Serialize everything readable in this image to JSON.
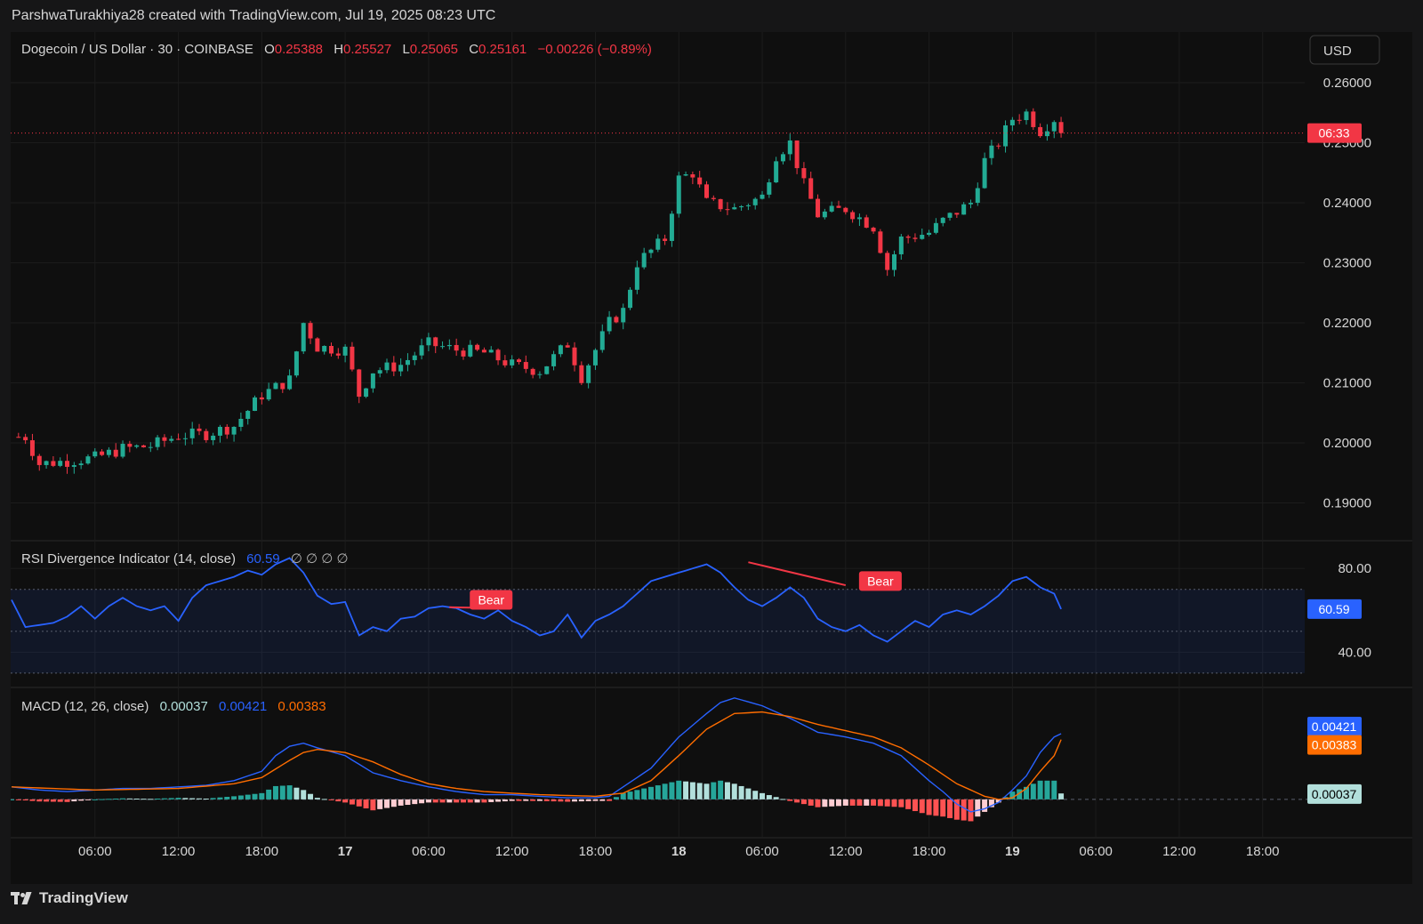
{
  "header": {
    "text": "ParshwaTurakhiya28 created with TradingView.com, Jul 19, 2025 08:23 UTC"
  },
  "footer": {
    "brand": "TradingView"
  },
  "colors": {
    "up": "#22ab94",
    "down": "#f23645",
    "rsi": "#2962ff",
    "macd": "#2962ff",
    "signal": "#ff6d00",
    "histUp": "#26a69a",
    "histUpLight": "#b2dfdb",
    "histDown": "#ff5252",
    "histDownLight": "#ffcdd2"
  },
  "legend": {
    "symbol": "Dogecoin / US Dollar · 30 · COINBASE",
    "o_label": "O",
    "o": "0.25388",
    "h_label": "H",
    "h": "0.25527",
    "l_label": "L",
    "l": "0.25065",
    "c_label": "C",
    "c": "0.25161",
    "change": "−0.00226 (−0.89%)"
  },
  "currency_button": "USD",
  "rsi_legend": {
    "name": "RSI Divergence Indicator (14, close)",
    "value": "60.59",
    "symbols": "∅ ∅ ∅ ∅"
  },
  "macd_legend": {
    "name": "MACD (12, 26, close)",
    "hist": "0.00037",
    "macd": "0.00421",
    "signal": "0.00383"
  },
  "chart_data": [
    {
      "type": "candlestick",
      "title": "Dogecoin / US Dollar · 30 · COINBASE",
      "ylim": [
        0.184,
        0.264
      ],
      "y_ticks": [
        "0.26000",
        "0.25000",
        "0.24000",
        "0.23000",
        "0.22000",
        "0.21000",
        "0.20000",
        "0.19000"
      ],
      "y_tick_values": [
        0.26,
        0.25,
        0.24,
        0.23,
        0.22,
        0.21,
        0.2,
        0.19
      ],
      "last_price": 0.25161,
      "countdown_label": "06:33",
      "x_axis": [
        "06:00",
        "12:00",
        "18:00",
        "17",
        "06:00",
        "12:00",
        "18:00",
        "18",
        "06:00",
        "12:00",
        "18:00",
        "19",
        "06:00",
        "12:00",
        "18:00"
      ],
      "x_axis_bold": [
        false,
        false,
        false,
        true,
        false,
        false,
        false,
        true,
        false,
        false,
        false,
        true,
        false,
        false,
        false
      ],
      "x_axis_hours": [
        30,
        36,
        42,
        48,
        54,
        60,
        66,
        72,
        78,
        84,
        90,
        96,
        102,
        108,
        114
      ],
      "close_series_hourly_anchors": [
        [
          25,
          0.201
        ],
        [
          26,
          0.1965
        ],
        [
          28,
          0.197
        ],
        [
          30,
          0.1975
        ],
        [
          32,
          0.199
        ],
        [
          34,
          0.1995
        ],
        [
          36,
          0.2012
        ],
        [
          38,
          0.2015
        ],
        [
          40,
          0.2028
        ],
        [
          42,
          0.208
        ],
        [
          44,
          0.2105
        ],
        [
          45,
          0.22
        ],
        [
          46,
          0.216
        ],
        [
          48,
          0.2155
        ],
        [
          49,
          0.208
        ],
        [
          50,
          0.212
        ],
        [
          52,
          0.213
        ],
        [
          54,
          0.2165
        ],
        [
          56,
          0.2155
        ],
        [
          58,
          0.215
        ],
        [
          60,
          0.213
        ],
        [
          62,
          0.212
        ],
        [
          64,
          0.2165
        ],
        [
          65,
          0.211
        ],
        [
          67,
          0.22
        ],
        [
          68,
          0.222
        ],
        [
          69,
          0.23
        ],
        [
          71,
          0.234
        ],
        [
          72,
          0.244
        ],
        [
          73,
          0.245
        ],
        [
          74,
          0.24
        ],
        [
          76,
          0.239
        ],
        [
          78,
          0.241
        ],
        [
          79,
          0.248
        ],
        [
          80,
          0.25
        ],
        [
          81,
          0.243
        ],
        [
          82,
          0.238
        ],
        [
          84,
          0.239
        ],
        [
          86,
          0.236
        ],
        [
          87,
          0.229
        ],
        [
          88,
          0.234
        ],
        [
          90,
          0.235
        ],
        [
          91,
          0.237
        ],
        [
          93,
          0.24
        ],
        [
          94,
          0.247
        ],
        [
          95,
          0.25
        ],
        [
          96,
          0.254
        ],
        [
          97,
          0.255
        ],
        [
          98,
          0.252
        ],
        [
          99,
          0.254
        ],
        [
          99.5,
          0.2516
        ]
      ]
    },
    {
      "type": "line",
      "title": "RSI Divergence Indicator (14, close)",
      "ylim": [
        24,
        92
      ],
      "y_ticks": [
        "80.00",
        "40.00"
      ],
      "y_tick_values": [
        80,
        40
      ],
      "band_upper": 70,
      "band_lower": 30,
      "midline": 50,
      "last_value": 60.59,
      "labels": [
        {
          "text": "Bear",
          "hour": 58.5,
          "value": 65
        },
        {
          "text": "Bear",
          "hour": 86.5,
          "value": 74
        }
      ],
      "divergence_lines": [
        {
          "from_hour": 55.5,
          "from": 61.5,
          "to_hour": 59.5,
          "to": 61
        },
        {
          "from_hour": 77,
          "from": 83,
          "to_hour": 84,
          "to": 72
        }
      ],
      "series_hourly_anchors": [
        [
          24,
          65
        ],
        [
          25,
          52
        ],
        [
          26,
          53
        ],
        [
          27,
          54
        ],
        [
          28,
          57
        ],
        [
          29,
          62
        ],
        [
          30,
          56
        ],
        [
          31,
          62
        ],
        [
          32,
          66
        ],
        [
          33,
          62
        ],
        [
          34,
          60
        ],
        [
          35,
          62
        ],
        [
          36,
          55
        ],
        [
          37,
          66
        ],
        [
          38,
          72
        ],
        [
          39,
          74
        ],
        [
          40,
          76
        ],
        [
          41,
          79
        ],
        [
          42,
          77
        ],
        [
          43,
          82
        ],
        [
          44,
          85
        ],
        [
          45,
          78
        ],
        [
          46,
          67
        ],
        [
          47,
          63
        ],
        [
          48,
          64
        ],
        [
          49,
          48
        ],
        [
          50,
          52
        ],
        [
          51,
          50
        ],
        [
          52,
          56
        ],
        [
          53,
          57
        ],
        [
          54,
          61
        ],
        [
          55,
          62
        ],
        [
          56,
          61
        ],
        [
          57,
          58
        ],
        [
          58,
          56
        ],
        [
          59,
          60
        ],
        [
          60,
          55
        ],
        [
          61,
          52
        ],
        [
          62,
          48
        ],
        [
          63,
          50
        ],
        [
          64,
          58
        ],
        [
          65,
          47
        ],
        [
          66,
          55
        ],
        [
          67,
          58
        ],
        [
          68,
          62
        ],
        [
          69,
          68
        ],
        [
          70,
          74
        ],
        [
          71,
          76
        ],
        [
          72,
          78
        ],
        [
          73,
          80
        ],
        [
          74,
          82
        ],
        [
          75,
          78
        ],
        [
          76,
          71
        ],
        [
          77,
          65
        ],
        [
          78,
          62
        ],
        [
          79,
          66
        ],
        [
          80,
          71
        ],
        [
          81,
          66
        ],
        [
          82,
          56
        ],
        [
          83,
          52
        ],
        [
          84,
          50
        ],
        [
          85,
          53
        ],
        [
          86,
          48
        ],
        [
          87,
          45
        ],
        [
          88,
          50
        ],
        [
          89,
          55
        ],
        [
          90,
          52
        ],
        [
          91,
          58
        ],
        [
          92,
          60
        ],
        [
          93,
          58
        ],
        [
          94,
          62
        ],
        [
          95,
          67
        ],
        [
          96,
          74
        ],
        [
          97,
          76
        ],
        [
          98,
          71
        ],
        [
          99,
          68
        ],
        [
          99.5,
          60.59
        ]
      ]
    },
    {
      "type": "line+bar",
      "title": "MACD (12, 26, close)",
      "ylim": [
        -0.0024,
        0.007
      ],
      "zero_line": 0,
      "last_values": {
        "macd": 0.00421,
        "signal": 0.00383,
        "hist": 0.00037
      },
      "macd_hourly_anchors": [
        [
          24,
          0.0008
        ],
        [
          26,
          0.0006
        ],
        [
          28,
          0.0005
        ],
        [
          30,
          0.0006
        ],
        [
          32,
          0.0007
        ],
        [
          34,
          0.0007
        ],
        [
          36,
          0.0008
        ],
        [
          38,
          0.0009
        ],
        [
          40,
          0.0012
        ],
        [
          42,
          0.0018
        ],
        [
          43,
          0.0028
        ],
        [
          44,
          0.0034
        ],
        [
          45,
          0.0036
        ],
        [
          46,
          0.0033
        ],
        [
          48,
          0.0028
        ],
        [
          50,
          0.0017
        ],
        [
          52,
          0.0012
        ],
        [
          54,
          0.0008
        ],
        [
          56,
          0.0005
        ],
        [
          58,
          0.0003
        ],
        [
          60,
          0.0003
        ],
        [
          62,
          0.0002
        ],
        [
          64,
          0.0001
        ],
        [
          66,
          0.0001
        ],
        [
          67,
          0.0002
        ],
        [
          68,
          0.0008
        ],
        [
          70,
          0.002
        ],
        [
          72,
          0.004
        ],
        [
          74,
          0.0055
        ],
        [
          75,
          0.0062
        ],
        [
          76,
          0.0065
        ],
        [
          78,
          0.006
        ],
        [
          80,
          0.0052
        ],
        [
          82,
          0.0043
        ],
        [
          84,
          0.004
        ],
        [
          86,
          0.0036
        ],
        [
          88,
          0.0028
        ],
        [
          90,
          0.0012
        ],
        [
          91,
          0.0005
        ],
        [
          92,
          -0.0003
        ],
        [
          93,
          -0.0008
        ],
        [
          94,
          -0.0006
        ],
        [
          95,
          -0.0002
        ],
        [
          96,
          0.0006
        ],
        [
          97,
          0.0015
        ],
        [
          98,
          0.003
        ],
        [
          99,
          0.004
        ],
        [
          99.5,
          0.00421
        ]
      ],
      "signal_hourly_anchors": [
        [
          24,
          0.0008
        ],
        [
          30,
          0.0006
        ],
        [
          36,
          0.0007
        ],
        [
          40,
          0.001
        ],
        [
          42,
          0.0014
        ],
        [
          44,
          0.0025
        ],
        [
          45,
          0.003
        ],
        [
          46,
          0.0032
        ],
        [
          48,
          0.003
        ],
        [
          50,
          0.0024
        ],
        [
          52,
          0.0016
        ],
        [
          54,
          0.001
        ],
        [
          56,
          0.0007
        ],
        [
          58,
          0.0005
        ],
        [
          62,
          0.0003
        ],
        [
          66,
          0.0002
        ],
        [
          68,
          0.0004
        ],
        [
          70,
          0.0012
        ],
        [
          72,
          0.0028
        ],
        [
          74,
          0.0045
        ],
        [
          76,
          0.0055
        ],
        [
          78,
          0.0056
        ],
        [
          80,
          0.0053
        ],
        [
          82,
          0.0048
        ],
        [
          84,
          0.0044
        ],
        [
          86,
          0.004
        ],
        [
          88,
          0.0033
        ],
        [
          90,
          0.0022
        ],
        [
          92,
          0.001
        ],
        [
          94,
          0.0002
        ],
        [
          95,
          0.0
        ],
        [
          96,
          0.0001
        ],
        [
          97,
          0.0007
        ],
        [
          98,
          0.0018
        ],
        [
          99,
          0.0028
        ],
        [
          99.5,
          0.00383
        ]
      ]
    }
  ]
}
